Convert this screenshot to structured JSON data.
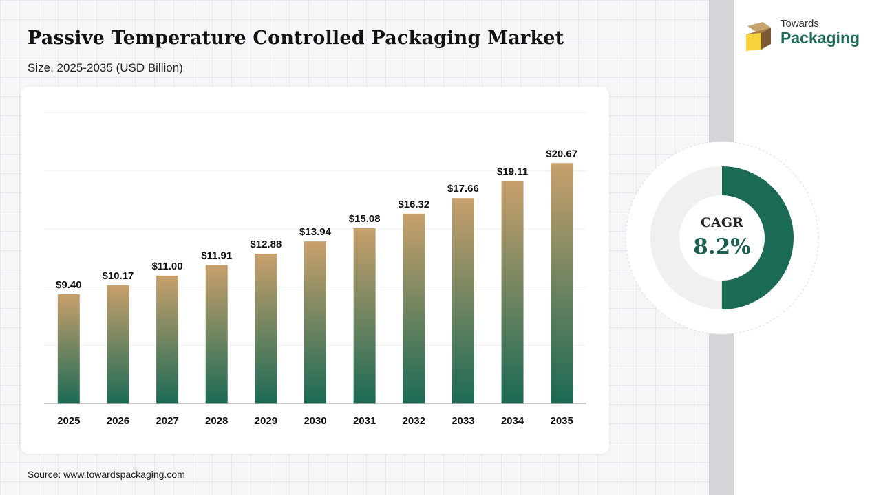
{
  "header": {
    "title": "Passive Temperature Controlled Packaging Market",
    "subtitle": "Size, 2025-2035 (USD Billion)"
  },
  "logo": {
    "line1": "Towards",
    "line2": "Packaging"
  },
  "cagr": {
    "label": "CAGR",
    "value": "8.2%",
    "fraction": 0.5
  },
  "source": "Source: www.towardspackaging.com",
  "colors": {
    "bar_top": "#c8a06c",
    "bar_bottom": "#1b6a55",
    "accent": "#1b6a55",
    "ring_bg": "#f0f0f0"
  },
  "chart_data": {
    "type": "bar",
    "categories": [
      "2025",
      "2026",
      "2027",
      "2028",
      "2029",
      "2030",
      "2031",
      "2032",
      "2033",
      "2034",
      "2035"
    ],
    "values": [
      9.4,
      10.17,
      11.0,
      11.91,
      12.88,
      13.94,
      15.08,
      16.32,
      17.66,
      19.11,
      20.67
    ],
    "value_labels": [
      "$9.40",
      "$10.17",
      "$11.00",
      "$11.91",
      "$12.88",
      "$13.94",
      "$15.08",
      "$16.32",
      "$17.66",
      "$19.11",
      "$20.67"
    ],
    "ylim": [
      0,
      25
    ],
    "grid": true
  }
}
